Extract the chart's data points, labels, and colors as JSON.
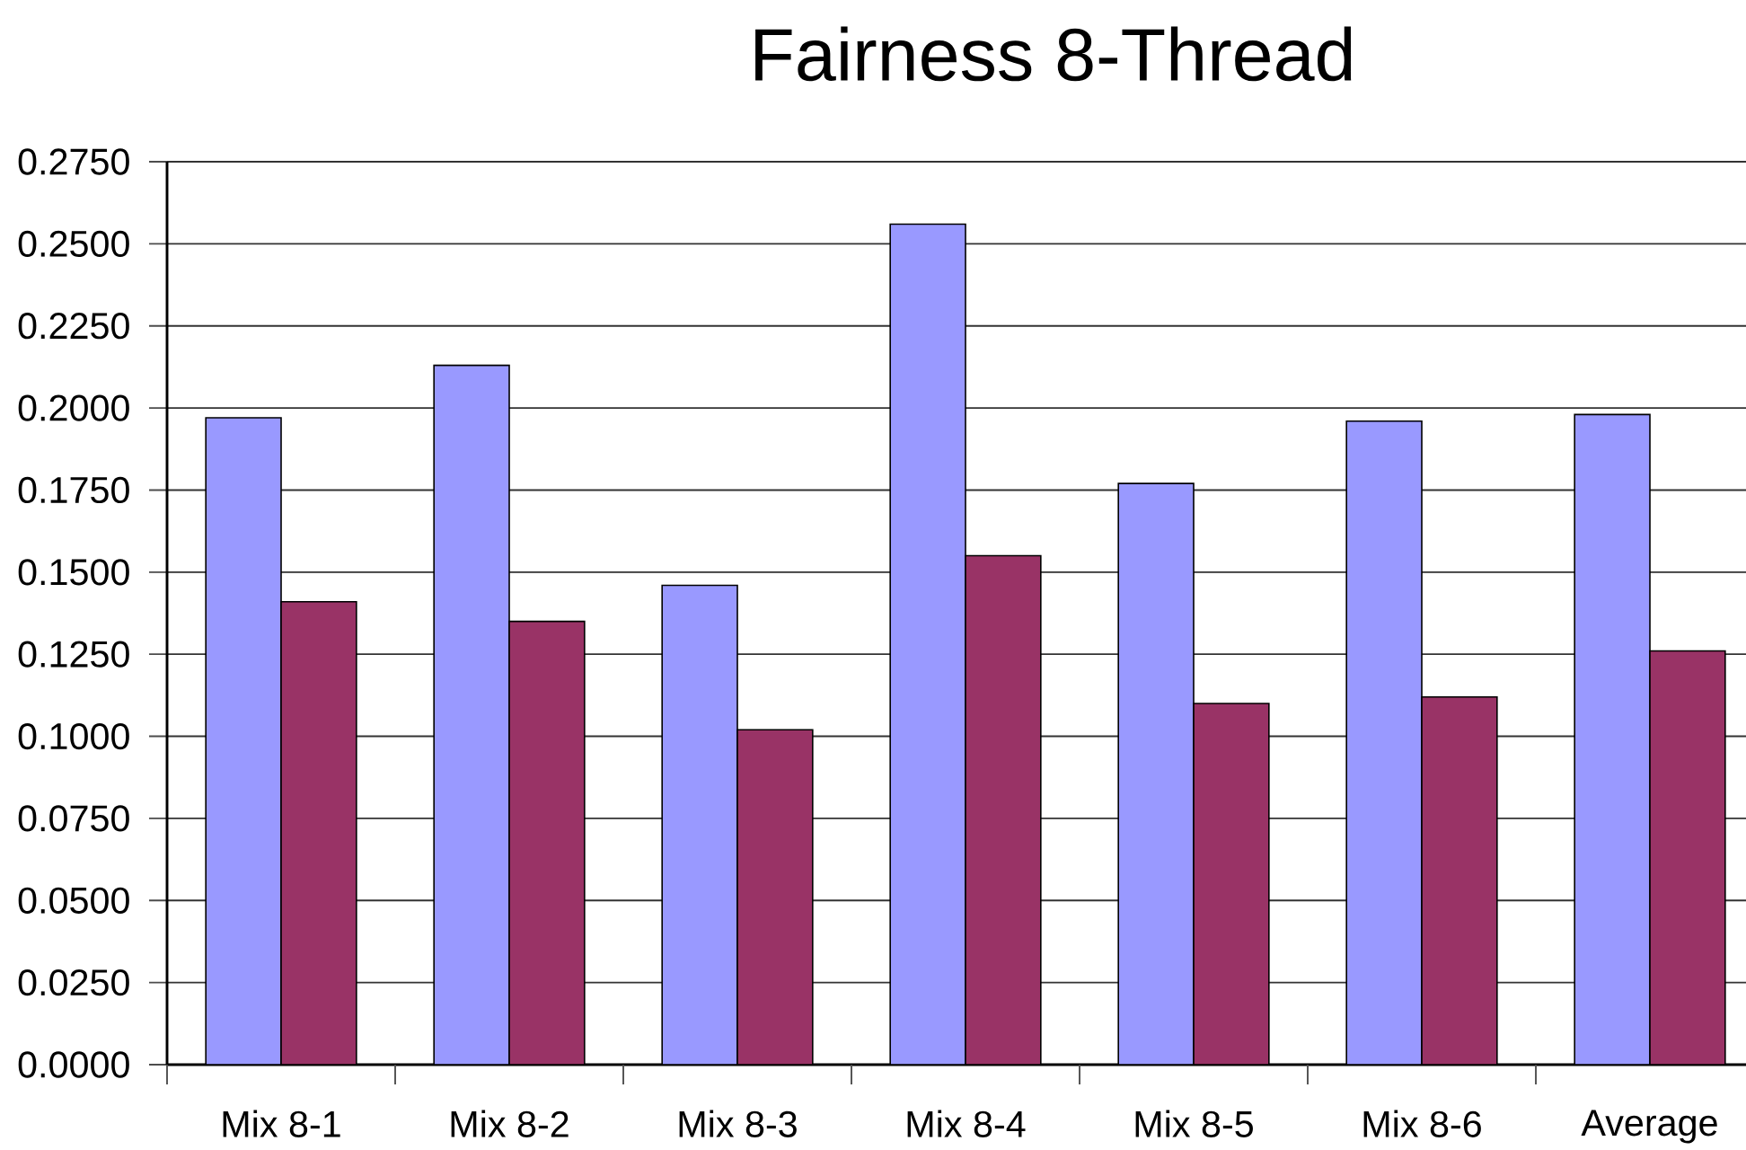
{
  "chart_data": {
    "type": "bar",
    "title": "Fairness 8-Thread",
    "categories": [
      "Mix 8-1",
      "Mix 8-2",
      "Mix 8-3",
      "Mix 8-4",
      "Mix 8-5",
      "Mix 8-6",
      "Average"
    ],
    "series": [
      {
        "color": "#9999ff",
        "values": [
          0.197,
          0.213,
          0.146,
          0.256,
          0.177,
          0.196,
          0.198
        ]
      },
      {
        "color": "#993366",
        "values": [
          0.141,
          0.135,
          0.102,
          0.155,
          0.11,
          0.112,
          0.126
        ]
      }
    ],
    "ylim": [
      0,
      0.275
    ],
    "yticks": [
      {
        "value": 0,
        "label": "0.0000"
      },
      {
        "value": 0.025,
        "label": "0.0250"
      },
      {
        "value": 0.05,
        "label": "0.0500"
      },
      {
        "value": 0.075,
        "label": "0.0750"
      },
      {
        "value": 0.1,
        "label": "0.1000"
      },
      {
        "value": 0.125,
        "label": "0.1250"
      },
      {
        "value": 0.15,
        "label": "0.1500"
      },
      {
        "value": 0.175,
        "label": "0.1750"
      },
      {
        "value": 0.2,
        "label": "0.2000"
      },
      {
        "value": 0.225,
        "label": "0.2250"
      },
      {
        "value": 0.25,
        "label": "0.2500"
      },
      {
        "value": 0.275,
        "label": "0.2750"
      }
    ],
    "grid": "y"
  }
}
